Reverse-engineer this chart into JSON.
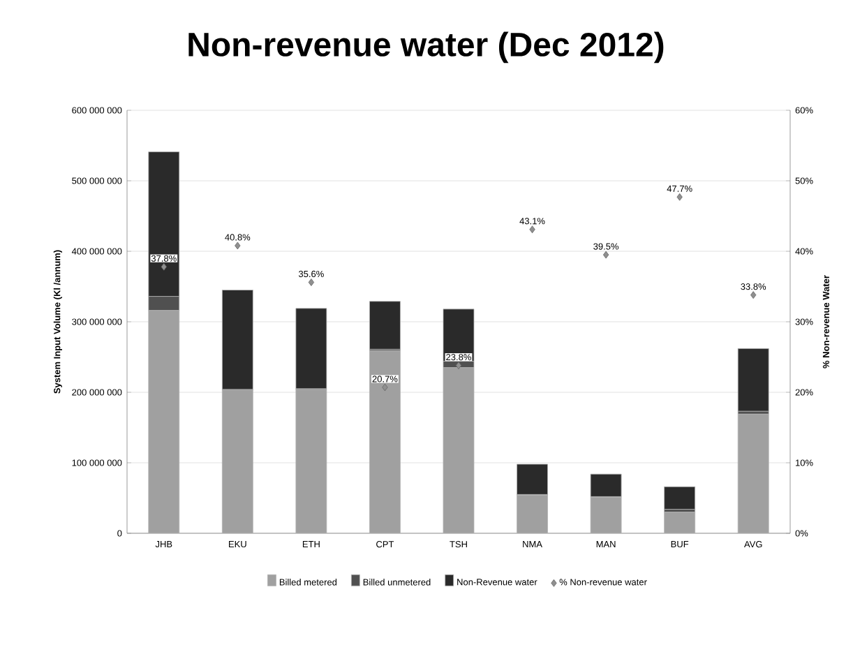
{
  "chart_data": {
    "type": "bar",
    "title": "Non-revenue water (Dec 2012)",
    "ylabel": "System Input Volume (Kl /annum)",
    "y2label": "% Non-revenue Water",
    "categories": [
      "JHB",
      "EKU",
      "ETH",
      "CPT",
      "TSH",
      "NMA",
      "MAN",
      "BUF",
      "AVG"
    ],
    "stacked": true,
    "grid": "y",
    "legend": "bottom",
    "marker": "diamond",
    "ylim": [
      0,
      600000000
    ],
    "yticks": [
      {
        "value": 0,
        "label": "0"
      },
      {
        "value": 100000000,
        "label": "100 000 000"
      },
      {
        "value": 200000000,
        "label": "200 000 000"
      },
      {
        "value": 300000000,
        "label": "300 000 000"
      },
      {
        "value": 400000000,
        "label": "400 000 000"
      },
      {
        "value": 500000000,
        "label": "500 000 000"
      },
      {
        "value": 600000000,
        "label": "600 000 000"
      }
    ],
    "y2lim": [
      0,
      60
    ],
    "y2ticks": [
      {
        "value": 0,
        "label": "0%"
      },
      {
        "value": 10,
        "label": "10%"
      },
      {
        "value": 20,
        "label": "20%"
      },
      {
        "value": 30,
        "label": "30%"
      },
      {
        "value": 40,
        "label": "40%"
      },
      {
        "value": 50,
        "label": "50%"
      },
      {
        "value": 60,
        "label": "60%"
      }
    ],
    "series": [
      {
        "name": "Billed metered",
        "color": "#a0a0a0",
        "values": [
          316000000,
          203000000,
          204000000,
          259000000,
          235000000,
          54000000,
          51000000,
          30000000,
          169000000
        ]
      },
      {
        "name": "Billed unmetered",
        "color": "#505050",
        "values": [
          20000000,
          1000000,
          1000000,
          2000000,
          9000000,
          1000000,
          1000000,
          4000000,
          4000000
        ]
      },
      {
        "name": "Non-Revenue water",
        "color": "#2a2a2a",
        "values": [
          205000000,
          141000000,
          114000000,
          68000000,
          74000000,
          43000000,
          32000000,
          32000000,
          89000000
        ]
      },
      {
        "name": "% Non-revenue water",
        "type": "scatter",
        "axis": "y2",
        "color": "#909090",
        "values": [
          37.8,
          40.8,
          35.6,
          20.7,
          23.8,
          43.1,
          39.5,
          47.7,
          33.8
        ],
        "value_labels": [
          "37.8%",
          "40.8%",
          "35.6%",
          "20.7%",
          "23.8%",
          "43.1%",
          "39.5%",
          "47.7%",
          "33.8%"
        ]
      }
    ]
  }
}
